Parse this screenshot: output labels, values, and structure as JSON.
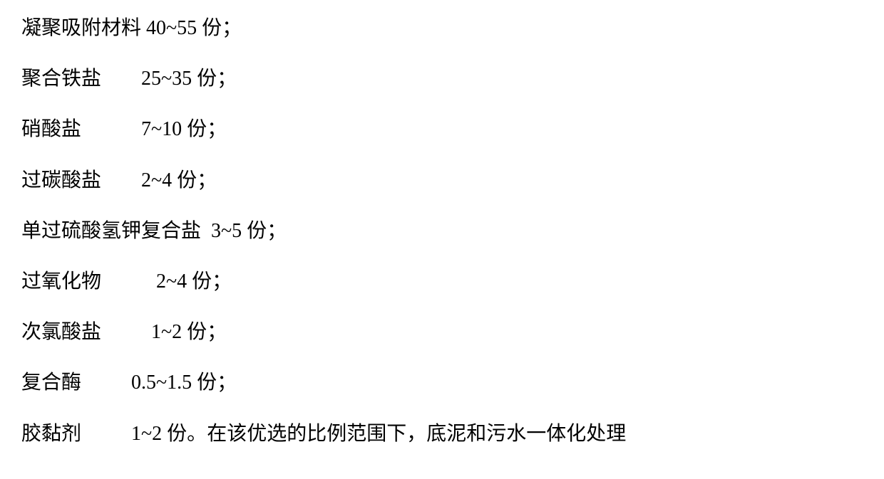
{
  "text_color": "#000000",
  "background_color": "#ffffff",
  "font_size": 28,
  "lines": [
    {
      "name": "凝聚吸附材料 ",
      "value": "40~55 ",
      "unit": "份；",
      "extra": ""
    },
    {
      "name": "聚合铁盐        ",
      "value": "25~35 ",
      "unit": "份；",
      "extra": ""
    },
    {
      "name": "硝酸盐            ",
      "value": "7~10 ",
      "unit": "份；",
      "extra": ""
    },
    {
      "name": "过碳酸盐        ",
      "value": "2~4 ",
      "unit": "份；",
      "extra": ""
    },
    {
      "name": "单过硫酸氢钾复合盐  ",
      "value": "3~5 ",
      "unit": "份；",
      "extra": ""
    },
    {
      "name": "过氧化物           ",
      "value": "2~4 ",
      "unit": "份；",
      "extra": ""
    },
    {
      "name": "次氯酸盐          ",
      "value": "1~2 ",
      "unit": "份；",
      "extra": ""
    },
    {
      "name": "复合酶          ",
      "value": "0.5~1.5 ",
      "unit": "份；",
      "extra": ""
    },
    {
      "name": "胶黏剂          ",
      "value": "1~2 ",
      "unit": "份。",
      "extra": "在该优选的比例范围下，底泥和污水一体化处理"
    }
  ]
}
